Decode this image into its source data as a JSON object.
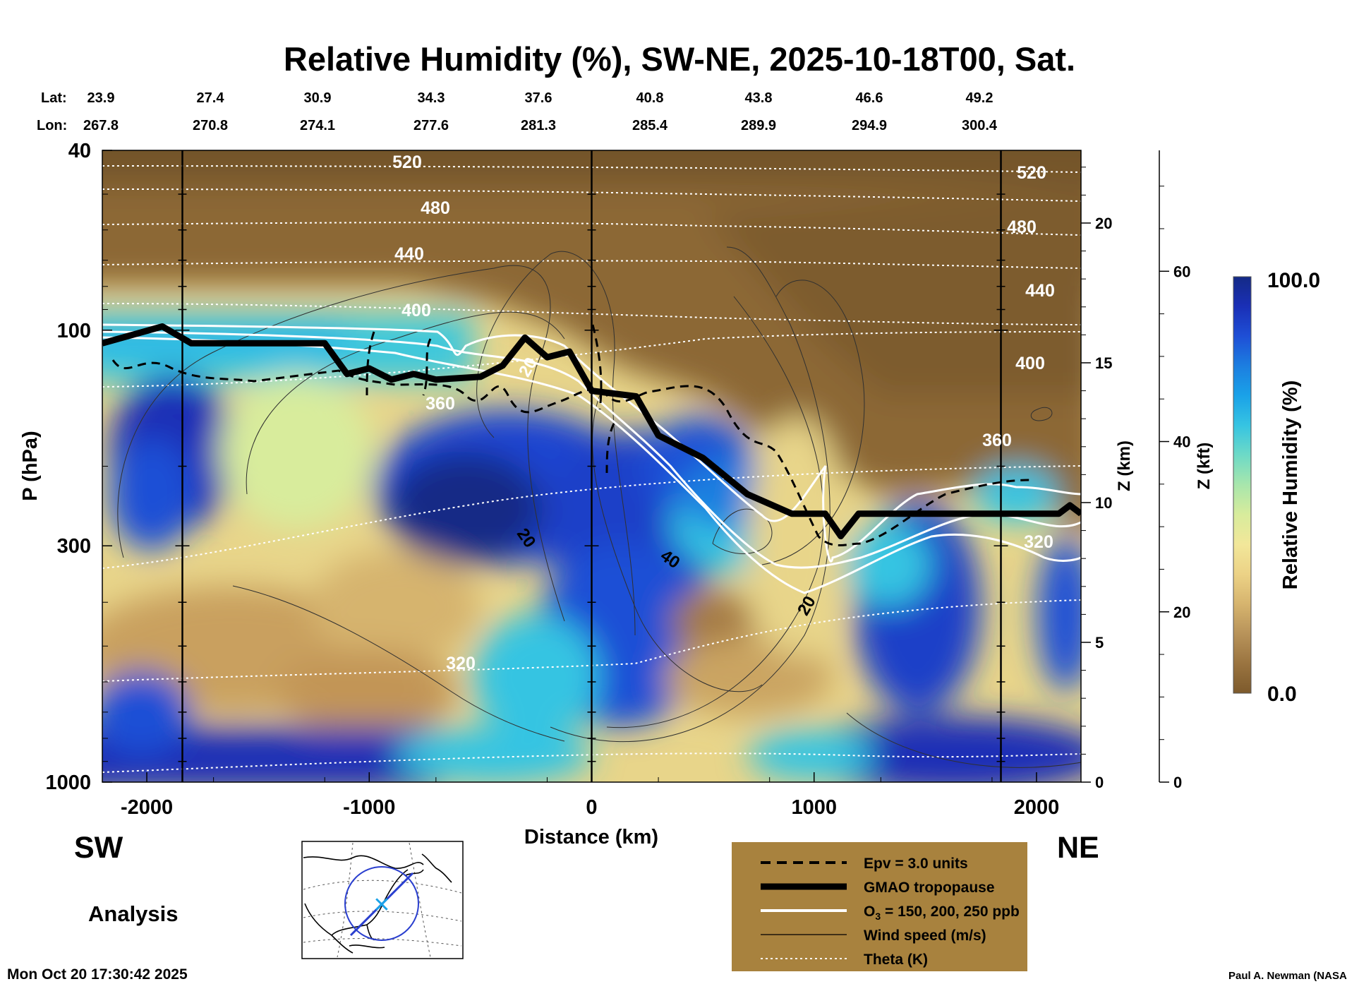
{
  "chart_data": {
    "type": "heatmap",
    "title": "Relative Humidity (%), SW-NE, 2025-10-18T00, Sat.",
    "xlabel": "Distance (km)",
    "ylabel": "P (hPa)",
    "y2label": "Z (km)",
    "y3label": "Z (kft)",
    "xlim": [
      -2200,
      2200
    ],
    "ylim": [
      1000,
      40
    ],
    "x_ticks": [
      -2000,
      -1000,
      0,
      1000,
      2000
    ],
    "p_ticks": [
      40,
      100,
      300,
      1000
    ],
    "z_km_ticks": [
      0,
      5,
      10,
      15,
      20
    ],
    "z_kft_ticks": [
      0,
      20,
      40,
      60
    ],
    "lat_label": "Lat:",
    "lon_label": "Lon:",
    "lat_values": [
      "23.9",
      "27.4",
      "30.9",
      "34.3",
      "37.6",
      "40.8",
      "43.8",
      "46.6",
      "49.2"
    ],
    "lon_values": [
      "267.8",
      "270.8",
      "274.1",
      "277.6",
      "281.3",
      "285.4",
      "289.9",
      "294.9",
      "300.4"
    ],
    "marker_lines_km": [
      -1840,
      0,
      1840
    ],
    "left_direction": "SW",
    "right_direction": "NE",
    "run_type": "Analysis",
    "timestamp": "Mon Oct 20 17:30:42 2025",
    "credit": "Paul A. Newman (NASA",
    "colorbar": {
      "label": "Relative Humidity (%)",
      "min": "0.0",
      "max": "100.0",
      "colors": [
        "#7d5a2c",
        "#9a7440",
        "#b8935a",
        "#d6b46e",
        "#ecd286",
        "#f2e79a",
        "#d8ec9c",
        "#a8e6ac",
        "#6edac6",
        "#36c4e2",
        "#1aa2e8",
        "#1c7ee0",
        "#1e4fd6",
        "#1a2fb6",
        "#142a86"
      ]
    },
    "theta_labels_K": [
      "520",
      "480",
      "440",
      "400",
      "360",
      "320"
    ],
    "theta_right_labels_K": [
      "520",
      "480",
      "440",
      "400",
      "360",
      "320"
    ],
    "wind_labels_ms": [
      "20",
      "20",
      "40",
      "20"
    ],
    "tropopause_km": [
      [
        -2200,
        15.7
      ],
      [
        -1930,
        16.3
      ],
      [
        -1800,
        15.7
      ],
      [
        -1200,
        15.7
      ],
      [
        -1100,
        14.6
      ],
      [
        -1000,
        14.8
      ],
      [
        -900,
        14.4
      ],
      [
        -800,
        14.6
      ],
      [
        -700,
        14.4
      ],
      [
        -500,
        14.5
      ],
      [
        -400,
        14.9
      ],
      [
        -300,
        15.9
      ],
      [
        -200,
        15.2
      ],
      [
        -100,
        15.4
      ],
      [
        0,
        14.0
      ],
      [
        200,
        13.8
      ],
      [
        300,
        12.4
      ],
      [
        500,
        11.6
      ],
      [
        700,
        10.3
      ],
      [
        900,
        9.6
      ],
      [
        1050,
        9.6
      ],
      [
        1120,
        8.8
      ],
      [
        1200,
        9.6
      ],
      [
        1800,
        9.6
      ],
      [
        2100,
        9.6
      ],
      [
        2150,
        9.9
      ],
      [
        2200,
        9.6
      ]
    ],
    "legend": [
      {
        "style": "dashed",
        "label": "Epv = 3.0 units"
      },
      {
        "style": "thick",
        "label": "GMAO tropopause"
      },
      {
        "style": "white",
        "label": "O",
        "sub": "3",
        "label_tail": " = 150, 200, 250 ppb"
      },
      {
        "style": "thin",
        "label": "Wind speed (m/s)"
      },
      {
        "style": "dotted",
        "label": "Theta (K)"
      }
    ],
    "colors": {
      "legend_background": "#a8823e",
      "tropopause": "#000000",
      "ozone": "#ffffff",
      "map_circle": "#2a3fcf",
      "map_marker": "#1aa2e8"
    }
  }
}
